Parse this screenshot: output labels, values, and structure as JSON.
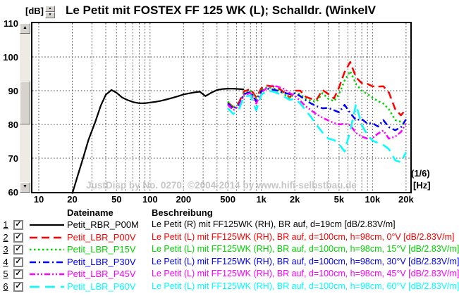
{
  "chart_data": {
    "type": "line",
    "title": "Le Petit mit FOSTEX FF 125 WK (L); Schalldr. (WinkelV",
    "xlabel": "[Hz]",
    "ylabel": "[dB]",
    "annotation": "(1/6)",
    "watermark": "JustDisp by No. 0270; ©2004-2014 by www.hifi-selbstbau.de",
    "x_scale": "log",
    "xlim": [
      8.8,
      21600
    ],
    "ylim": [
      60,
      110
    ],
    "grid": "dashed",
    "x_tick_values": [
      10,
      20,
      50,
      100,
      200,
      500,
      1000,
      2000,
      5000,
      10000,
      20000
    ],
    "x_tick_labels": [
      "10",
      "20",
      "50",
      "100",
      "200",
      "500",
      "1k",
      "2k",
      "5k",
      "10k",
      "20k"
    ],
    "y_tick_values": [
      110,
      100,
      90,
      80,
      70,
      60
    ],
    "y_tick_labels": [
      "110",
      "100",
      "90",
      "80",
      "70",
      "60"
    ],
    "x_gridlines": [
      10,
      20,
      30,
      40,
      50,
      60,
      70,
      80,
      90,
      100,
      200,
      300,
      400,
      500,
      600,
      700,
      800,
      900,
      1000,
      2000,
      3000,
      4000,
      5000,
      6000,
      7000,
      8000,
      9000,
      10000,
      20000
    ],
    "y_gridlines": [
      70,
      80,
      90,
      100
    ],
    "series": [
      {
        "name": "Petit_RBR_P00M",
        "color": "#000000",
        "dash": "",
        "width": 2.2,
        "x": [
          20,
          22,
          25,
          28,
          32,
          36,
          40,
          45,
          50,
          56,
          63,
          71,
          80,
          90,
          100,
          112,
          125,
          140,
          160,
          180,
          200,
          224,
          250,
          280,
          315,
          355,
          400,
          450,
          500,
          560,
          630,
          700
        ],
        "y": [
          59.5,
          64,
          70,
          75.5,
          80.5,
          85.5,
          88.8,
          90.2,
          89.4,
          88,
          87.2,
          86.6,
          86.3,
          86.3,
          86.5,
          86.7,
          87,
          87.4,
          87.9,
          88.4,
          88.9,
          89.2,
          89.5,
          89.7,
          88.4,
          89.4,
          90.2,
          90.5,
          90.6,
          90.6,
          90.5,
          90.4
        ]
      },
      {
        "name": "Petit_LBR_P00V",
        "color": "#ff0000",
        "dash": "11,6",
        "width": 2.5,
        "x": [
          500,
          560,
          630,
          700,
          800,
          900,
          1000,
          1120,
          1250,
          1400,
          1600,
          1800,
          2000,
          2240,
          2500,
          2800,
          3150,
          3550,
          4000,
          4500,
          5000,
          5600,
          6300,
          7100,
          8000,
          9000,
          10000,
          11200,
          12500,
          14000,
          16000,
          18000,
          20000
        ],
        "y": [
          86.5,
          85.2,
          86.5,
          89.8,
          90.5,
          88,
          90.7,
          91.5,
          91.3,
          91,
          89.5,
          88,
          90,
          90,
          88.2,
          87.6,
          87.4,
          90.2,
          89,
          87.7,
          91,
          95.5,
          98.5,
          94,
          92.2,
          92,
          91.3,
          91.2,
          91.3,
          89.5,
          84.5,
          82.7,
          84.5
        ]
      },
      {
        "name": "Petit_LBR_P15V",
        "color": "#00d400",
        "dash": "2.5,3.5",
        "width": 2.5,
        "x": [
          500,
          560,
          630,
          700,
          800,
          900,
          1000,
          1120,
          1250,
          1400,
          1600,
          1800,
          2000,
          2240,
          2500,
          2800,
          3150,
          3550,
          4000,
          4500,
          5000,
          5600,
          6300,
          7100,
          8000,
          9000,
          10000,
          11200,
          12500,
          14000,
          16000,
          18000,
          20000
        ],
        "y": [
          86.8,
          85,
          86,
          89.3,
          90,
          87.5,
          90.2,
          91,
          90.8,
          90.3,
          89,
          87.8,
          89.3,
          89,
          87.6,
          87,
          86.8,
          89.3,
          87.6,
          86.9,
          89,
          93,
          95.8,
          92,
          90,
          89,
          87.9,
          86.9,
          86.2,
          84.5,
          81.3,
          80.8,
          79.3
        ]
      },
      {
        "name": "Petit_LBR_P30V",
        "color": "#0000ff",
        "dash": "9,4,2,4",
        "width": 2.5,
        "x": [
          500,
          560,
          630,
          700,
          800,
          900,
          1000,
          1120,
          1250,
          1400,
          1600,
          1800,
          2000,
          2240,
          2500,
          2800,
          3150,
          3550,
          4000,
          4500,
          5000,
          5600,
          6300,
          7100,
          8000,
          9000,
          10000,
          11200,
          12500,
          14000,
          16000,
          18000,
          20000
        ],
        "y": [
          86.2,
          84.6,
          85.8,
          89,
          89.6,
          86.8,
          89.8,
          90.6,
          90.4,
          90,
          89.4,
          89,
          89.2,
          88.4,
          87.2,
          86.2,
          85.4,
          84.8,
          84.9,
          84.2,
          83.6,
          85.8,
          83.4,
          81.3,
          81.6,
          80.2,
          80.4,
          79.4,
          81.3,
          79.2,
          78.3,
          79.2,
          81.5
        ]
      },
      {
        "name": "Petit_LBR_P45V",
        "color": "#ff00ff",
        "dash": "8,3,2,3,2,3",
        "width": 2.5,
        "x": [
          500,
          560,
          630,
          700,
          800,
          900,
          1000,
          1120,
          1250,
          1400,
          1600,
          1800,
          2000,
          2240,
          2500,
          2800,
          3150,
          3550,
          4000,
          4500,
          5000,
          5600,
          6300,
          7100,
          8000,
          9000,
          10000,
          11200,
          12500,
          14000,
          16000,
          18000,
          20000
        ],
        "y": [
          85.8,
          84.2,
          85.5,
          88.8,
          89.3,
          86.2,
          89.5,
          90.8,
          91.5,
          91.2,
          90.5,
          89.3,
          88.5,
          87,
          85.4,
          84.2,
          83,
          82,
          81.2,
          80.4,
          80,
          80.2,
          79.8,
          77.5,
          76.4,
          75.8,
          76,
          77.3,
          78.2,
          75.8,
          76.4,
          77.8,
          80.3
        ]
      },
      {
        "name": "Petit_LBR_P60V",
        "color": "#00ffff",
        "dash": "14,8",
        "width": 2.5,
        "x": [
          500,
          560,
          630,
          700,
          800,
          900,
          1000,
          1120,
          1250,
          1400,
          1600,
          1800,
          2000,
          2240,
          2500,
          2800,
          3150,
          3550,
          4000,
          4500,
          5000,
          5600,
          6300,
          7100,
          8000,
          9000,
          10000,
          11200,
          12500,
          14000,
          16000,
          18000,
          20000
        ],
        "y": [
          84.8,
          83.1,
          84.5,
          88.2,
          88.6,
          84.2,
          88.8,
          90,
          89.8,
          89.3,
          88.3,
          87.3,
          87.6,
          86.2,
          84.2,
          82.2,
          79.8,
          77.6,
          75.8,
          75.4,
          74.2,
          72,
          78,
          86,
          79.8,
          76.9,
          75.2,
          74.5,
          73.9,
          72.7,
          69.4,
          68.8,
          71.8
        ]
      }
    ]
  },
  "icons": {
    "check": "✓",
    "up": "▲",
    "down": "▼"
  },
  "legend": {
    "col_dateiname": "Dateiname",
    "col_beschreibung": "Beschreibung",
    "rows": [
      {
        "num": "1",
        "checked": true,
        "name": "Petit_RBR_P00M",
        "desc": "Le Petit (R) mit FF125WK (RH), BR auf, d=19cm [dB/2.83V/m]"
      },
      {
        "num": "2",
        "checked": true,
        "name": "Petit_LBR_P00V",
        "desc": "Le Petit (L) mit FF125WK (RH), BR auf, d=100cm, h=98cm, 0°V [dB/2.83V/m]"
      },
      {
        "num": "3",
        "checked": true,
        "name": "Petit_LBR_P15V",
        "desc": "Le Petit (L) mit FF125WK (RH), BR auf, d=100cm, h=98cm, 15°V [dB/2.83V/m]"
      },
      {
        "num": "4",
        "checked": true,
        "name": "Petit_LBR_P30V",
        "desc": "Le Petit (L) mit FF125WK (RH), BR auf, d=100cm, h=98cm, 30°V [dB/2.83V/m]"
      },
      {
        "num": "5",
        "checked": true,
        "name": "Petit_LBR_P45V",
        "desc": "Le Petit (L) mit FF125WK (RH), BR auf, d=100cm, h=98cm, 45°V [dB/2.83V/m]"
      },
      {
        "num": "6",
        "checked": true,
        "name": "Petit_LBR_P60V",
        "desc": "Le Petit (L) mit FF125WK (RH), BR auf, d=100cm, h=98cm, 60°V [dB/2.83V/m]"
      }
    ]
  }
}
